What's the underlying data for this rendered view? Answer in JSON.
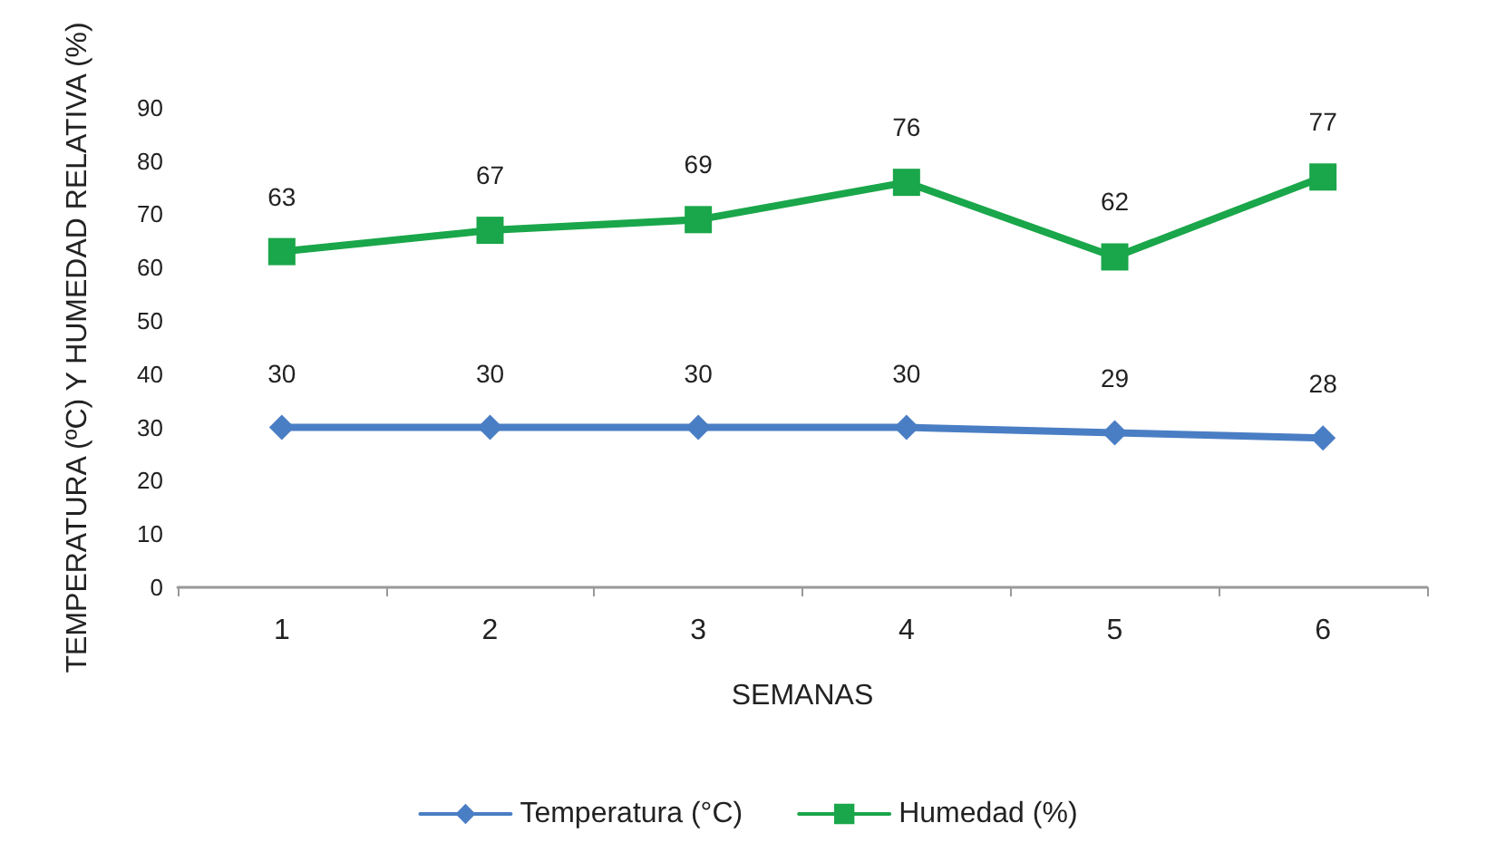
{
  "chart_data": {
    "type": "line",
    "xlabel": "SEMANAS",
    "ylabel": "TEMPERATURA (ºC) Y HUMEDAD RELATIVA (%)",
    "categories": [
      "1",
      "2",
      "3",
      "4",
      "5",
      "6"
    ],
    "series": [
      {
        "name": "Temperatura (°C)",
        "color": "#4a7ec4",
        "marker": "diamond",
        "values": [
          30,
          30,
          30,
          30,
          29,
          28
        ]
      },
      {
        "name": "Humedad (%)",
        "color": "#1aa64a",
        "marker": "square",
        "values": [
          63,
          67,
          69,
          76,
          62,
          77
        ]
      }
    ],
    "ylim": [
      0,
      90
    ],
    "yticks": [
      0,
      10,
      20,
      30,
      40,
      50,
      60,
      70,
      80,
      90
    ],
    "grid": false,
    "legend": "bottom",
    "data_labels": true,
    "line_style": "solid"
  }
}
